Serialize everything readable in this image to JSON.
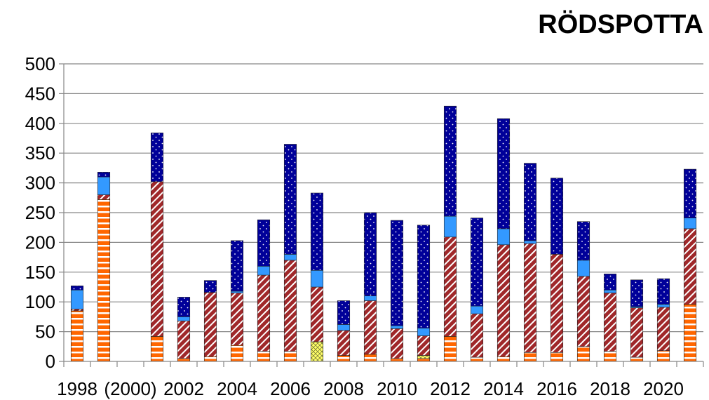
{
  "chart_data": {
    "type": "bar",
    "stacked": true,
    "title": "RÖDSPOTTA",
    "xlabel": "",
    "ylabel": "",
    "ylim": [
      0,
      500
    ],
    "yticks": [
      0,
      50,
      100,
      150,
      200,
      250,
      300,
      350,
      400,
      450,
      500
    ],
    "grid": true,
    "categories": [
      "1998",
      "1999",
      "2000",
      "2001",
      "2002",
      "2003",
      "2004",
      "2005",
      "2006",
      "2007",
      "2008",
      "2009",
      "2010",
      "2011",
      "2012",
      "2013",
      "2014",
      "2015",
      "2016",
      "2017",
      "2018",
      "2019",
      "2020",
      "2021"
    ],
    "x_tick_labels": [
      {
        "index": 0,
        "label": "1998"
      },
      {
        "index": 2,
        "label": "(2000)"
      },
      {
        "index": 4,
        "label": "2002"
      },
      {
        "index": 6,
        "label": "2004"
      },
      {
        "index": 8,
        "label": "2006"
      },
      {
        "index": 10,
        "label": "2008"
      },
      {
        "index": 12,
        "label": "2010"
      },
      {
        "index": 14,
        "label": "2012"
      },
      {
        "index": 16,
        "label": "2014"
      },
      {
        "index": 18,
        "label": "2016"
      },
      {
        "index": 20,
        "label": "2018"
      },
      {
        "index": 22,
        "label": "2020"
      }
    ],
    "series": [
      {
        "key": "s1",
        "color": "#ff6600",
        "pattern": "hstripe",
        "values": [
          85,
          272,
          0,
          42,
          5,
          8,
          27,
          17,
          17,
          0,
          10,
          12,
          5,
          5,
          42,
          7,
          8,
          15,
          15,
          25,
          17,
          7,
          18,
          96
        ]
      },
      {
        "key": "s2",
        "color": "#ffff66",
        "pattern": "diagcross",
        "values": [
          0,
          0,
          0,
          0,
          0,
          0,
          0,
          0,
          0,
          33,
          0,
          0,
          0,
          5,
          0,
          0,
          0,
          0,
          0,
          0,
          0,
          0,
          0,
          0
        ]
      },
      {
        "key": "s3",
        "color": "#a0282a",
        "pattern": "diagstripe",
        "values": [
          3,
          8,
          0,
          260,
          63,
          108,
          88,
          128,
          153,
          92,
          42,
          90,
          50,
          33,
          167,
          73,
          188,
          183,
          165,
          118,
          98,
          83,
          73,
          127
        ]
      },
      {
        "key": "s4",
        "color": "#3399ff",
        "pattern": "solid",
        "values": [
          32,
          30,
          0,
          0,
          7,
          0,
          3,
          15,
          10,
          28,
          10,
          8,
          5,
          13,
          35,
          13,
          27,
          5,
          0,
          27,
          5,
          2,
          5,
          18
        ]
      },
      {
        "key": "s5",
        "color": "#000099",
        "pattern": "dots",
        "values": [
          7,
          8,
          0,
          82,
          33,
          20,
          85,
          78,
          185,
          130,
          40,
          140,
          177,
          173,
          185,
          148,
          185,
          130,
          128,
          65,
          27,
          45,
          43,
          82
        ]
      }
    ]
  }
}
